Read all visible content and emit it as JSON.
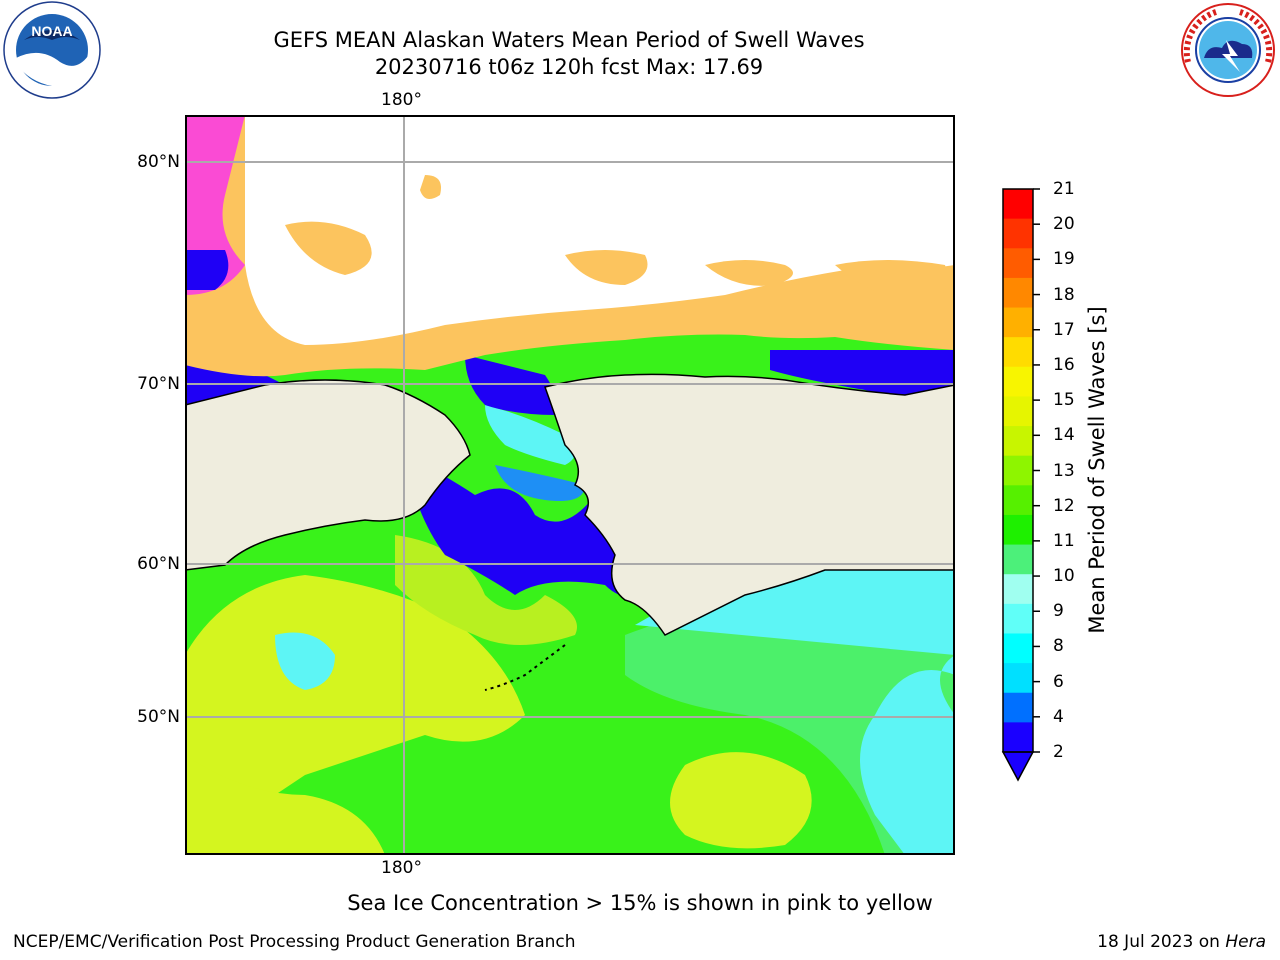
{
  "title": {
    "line1": "GEFS MEAN Alaskan Waters Mean Period of Swell Waves",
    "line2": "20230716 t06z 120h fcst   Max: 17.69"
  },
  "logos": {
    "left": {
      "name": "noaa-logo",
      "text": "NOAA",
      "ring_text": "NATIONAL OCEANIC AND ATMOSPHERIC ADMINISTRATION · U.S. DEPARTMENT OF COMMERCE"
    },
    "right": {
      "name": "nws-logo",
      "ring_text": "NATIONAL WEATHER SERVICE"
    }
  },
  "map": {
    "lon_labels": {
      "top": "180°",
      "bottom": "180°"
    },
    "lat_labels": [
      "80°N",
      "70°N",
      "60°N",
      "50°N"
    ],
    "land_color": "#efedde",
    "ocean_colors": {
      "yellow": "#d4f51f",
      "lime": "#39f21a",
      "green": "#4cf06a",
      "cyan": "#5df5f5",
      "blue": "#1f00f5",
      "ice_orange": "#fcc45e",
      "ice_pink": "#fa4bd4"
    }
  },
  "colorbar": {
    "title": "Mean Period of Swell Waves [s]",
    "labels": [
      "21",
      "20",
      "19",
      "18",
      "17",
      "16",
      "15",
      "14",
      "13",
      "12",
      "11",
      "10",
      "9",
      "8",
      "6",
      "4",
      "2"
    ],
    "colors": [
      "#ff0000",
      "#ff3300",
      "#ff5c00",
      "#ff8800",
      "#ffb000",
      "#ffdc00",
      "#f8f500",
      "#e6f500",
      "#c8f500",
      "#8ef500",
      "#56f000",
      "#1ef000",
      "#4cf07a",
      "#a0fff0",
      "#60fff8",
      "#00ffff",
      "#00e0ff",
      "#0070ff",
      "#1a00ff"
    ]
  },
  "notes": {
    "sea_ice": "Sea Ice Concentration > 15% is shown in pink to yellow",
    "footer_left": "NCEP/EMC/Verification Post Processing Product Generation Branch",
    "footer_date": "18 Jul 2023 on ",
    "footer_machine": "Hera"
  }
}
